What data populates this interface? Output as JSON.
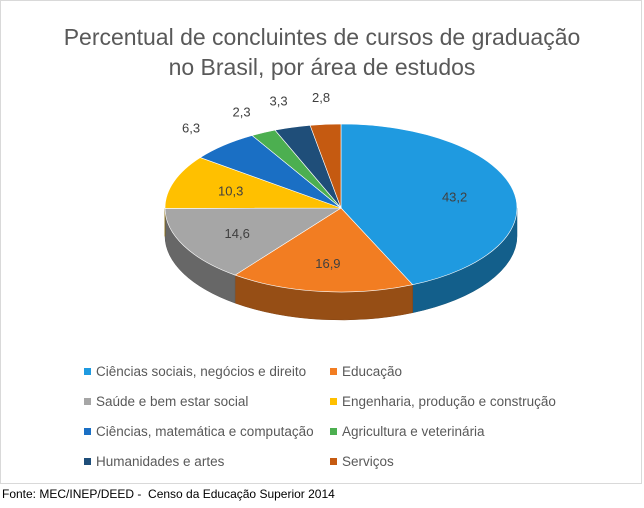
{
  "chart_data": {
    "type": "pie",
    "title": [
      "Percentual de concluintes de cursos de graduação",
      "no Brasil, por área de estudos"
    ],
    "slices": [
      {
        "label": "Ciências sociais, negócios e direito",
        "value": 43.2,
        "display": "43,2",
        "color": "#1F9AE0"
      },
      {
        "label": "Educação",
        "value": 16.9,
        "display": "16,9",
        "color": "#F27D22"
      },
      {
        "label": "Saúde e bem estar social",
        "value": 14.6,
        "display": "14,6",
        "color": "#A6A6A6"
      },
      {
        "label": "Engenharia, produção e construção",
        "value": 10.3,
        "display": "10,3",
        "color": "#FFC000"
      },
      {
        "label": "Ciências, matemática e computação",
        "value": 6.3,
        "display": "6,3",
        "color": "#1A6FC4"
      },
      {
        "label": "Agricultura e veterinária",
        "value": 2.3,
        "display": "2,3",
        "color": "#4CAF50"
      },
      {
        "label": "Humanidades e artes",
        "value": 3.3,
        "display": "3,3",
        "color": "#1F4E79"
      },
      {
        "label": "Serviços",
        "value": 2.8,
        "display": "2,8",
        "color": "#C55A11"
      }
    ],
    "legend_position": "bottom"
  },
  "source": "Fonte: MEC/INEP/DEED -  Censo da Educação Superior 2014"
}
